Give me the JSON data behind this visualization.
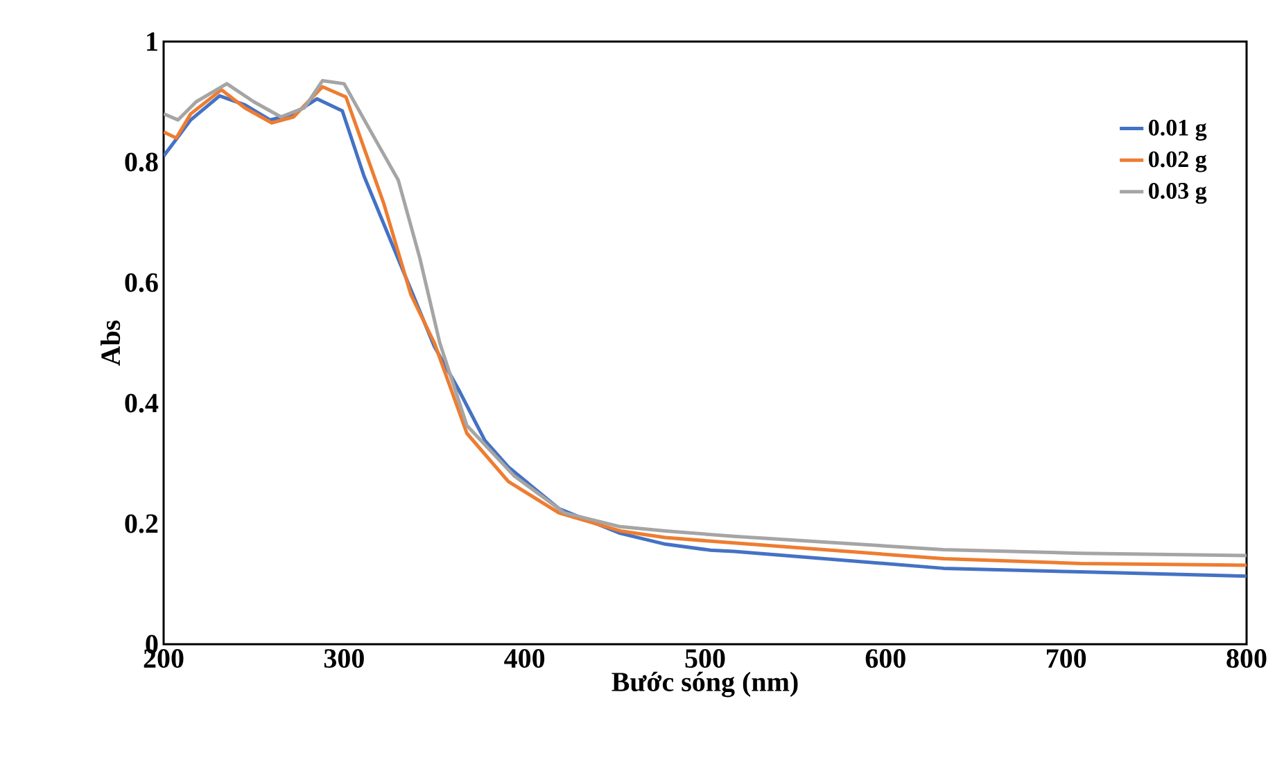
{
  "chart_data": {
    "type": "line",
    "xlabel": "Bước sóng (nm)",
    "ylabel": "Abs",
    "xlim": [
      200,
      800
    ],
    "ylim": [
      0,
      1
    ],
    "xticks": [
      200,
      300,
      400,
      500,
      600,
      700,
      800
    ],
    "yticks": [
      0,
      {
        "value": 0.2,
        "label": "0.2"
      },
      {
        "value": 0.4,
        "label": "0.4"
      },
      {
        "value": 0.6,
        "label": "0.6"
      },
      {
        "value": 0.8,
        "label": "0.8"
      },
      1
    ],
    "grid": false,
    "legend": "right",
    "marker": "none",
    "line_style": "solid",
    "series": [
      {
        "name": "0.01 g",
        "color": "#4472c4",
        "x": [
          200,
          205,
          215,
          231,
          245,
          259,
          272,
          285,
          299,
          311,
          334,
          350,
          363,
          378,
          391,
          419,
          453,
          478,
          503,
          516,
          632,
          708,
          800
        ],
        "values": [
          0.81,
          0.83,
          0.87,
          0.91,
          0.895,
          0.87,
          0.88,
          0.905,
          0.885,
          0.777,
          0.61,
          0.494,
          0.425,
          0.338,
          0.294,
          0.225,
          0.184,
          0.166,
          0.156,
          0.154,
          0.126,
          0.12,
          0.113
        ]
      },
      {
        "name": "0.02 g",
        "color": "#ed7d31",
        "x": [
          200,
          207,
          215,
          232,
          245,
          260,
          272,
          288,
          301,
          322,
          337,
          350,
          368,
          391,
          419,
          453,
          478,
          516,
          632,
          708,
          800
        ],
        "values": [
          0.85,
          0.84,
          0.88,
          0.92,
          0.89,
          0.865,
          0.875,
          0.925,
          0.908,
          0.731,
          0.58,
          0.5,
          0.35,
          0.27,
          0.218,
          0.188,
          0.177,
          0.168,
          0.142,
          0.134,
          0.131
        ]
      },
      {
        "name": "0.03 g",
        "color": "#a5a5a5",
        "x": [
          200,
          208,
          218,
          235,
          250,
          265,
          278,
          288,
          300,
          314,
          330,
          342,
          353,
          368,
          394,
          422,
          453,
          478,
          516,
          632,
          708,
          800
        ],
        "values": [
          0.88,
          0.87,
          0.9,
          0.93,
          0.9,
          0.875,
          0.89,
          0.935,
          0.93,
          0.855,
          0.77,
          0.64,
          0.5,
          0.363,
          0.28,
          0.218,
          0.195,
          0.188,
          0.179,
          0.157,
          0.151,
          0.147
        ]
      }
    ]
  }
}
